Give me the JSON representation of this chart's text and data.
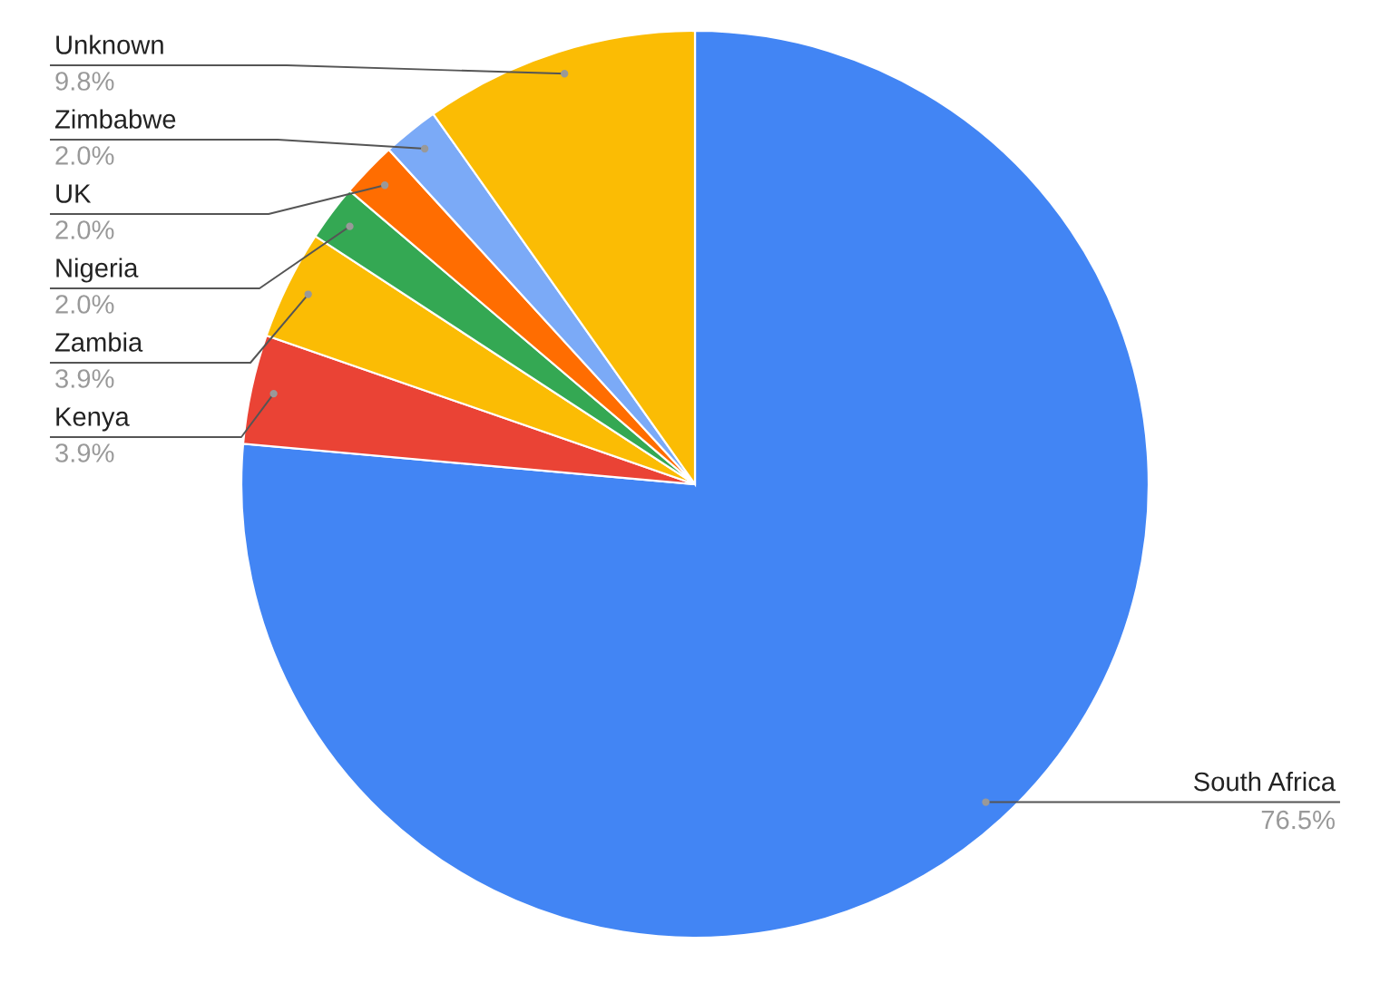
{
  "chart_data": {
    "type": "pie",
    "categories": [
      "South Africa",
      "Kenya",
      "Zambia",
      "Nigeria",
      "UK",
      "Zimbabwe",
      "Unknown"
    ],
    "values": [
      76.5,
      3.9,
      3.9,
      2.0,
      2.0,
      2.0,
      9.8
    ],
    "value_labels": [
      "76.5%",
      "3.9%",
      "3.9%",
      "2.0%",
      "2.0%",
      "2.0%",
      "9.8%"
    ],
    "colors": [
      "#4285f4",
      "#ea4335",
      "#fbbc04",
      "#34a853",
      "#ff6d01",
      "#7baaf7",
      "#fbbc04"
    ],
    "legend": false
  }
}
